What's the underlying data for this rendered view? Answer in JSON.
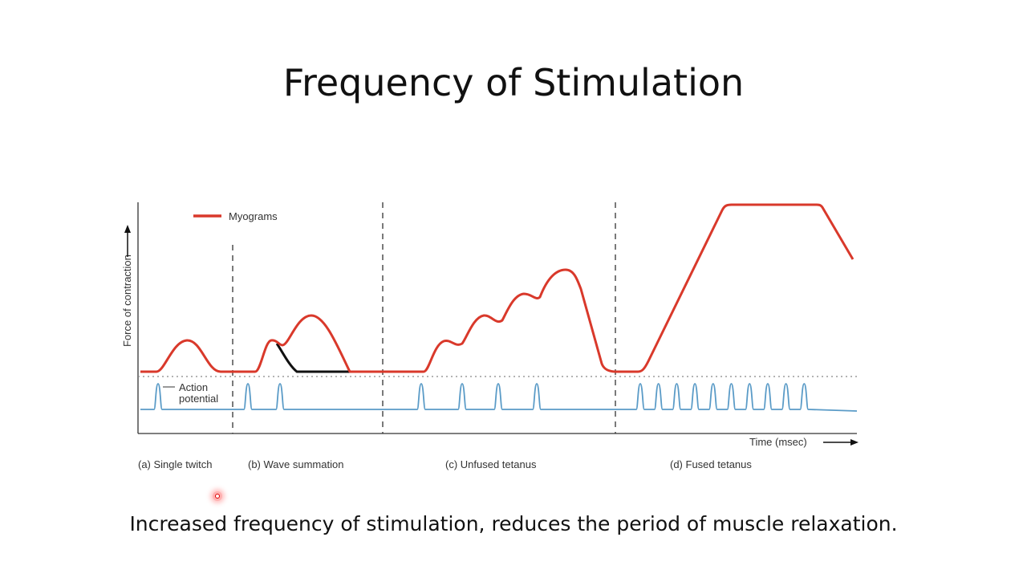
{
  "slide": {
    "title": "Frequency of Stimulation",
    "caption": "Increased frequency of stimulation, reduces the period of muscle relaxation."
  },
  "diagram": {
    "legend": "Myograms",
    "y_axis_label": "Force of contraction",
    "x_axis_label": "Time (msec)",
    "action_potential_label_line1": "Action",
    "action_potential_label_line2": "potential",
    "panels": [
      {
        "id": "a",
        "label": "(a) Single twitch",
        "stimuli": 1
      },
      {
        "id": "b",
        "label": "(b) Wave summation",
        "stimuli": 2
      },
      {
        "id": "c",
        "label": "(c) Unfused tetanus",
        "stimuli": 4
      },
      {
        "id": "d",
        "label": "(d) Fused tetanus",
        "stimuli": 10
      }
    ],
    "colors": {
      "myogram": "#d9392b",
      "action_potential": "#5a9bc7",
      "summation_overlay": "#111111",
      "axis": "#333333"
    }
  }
}
